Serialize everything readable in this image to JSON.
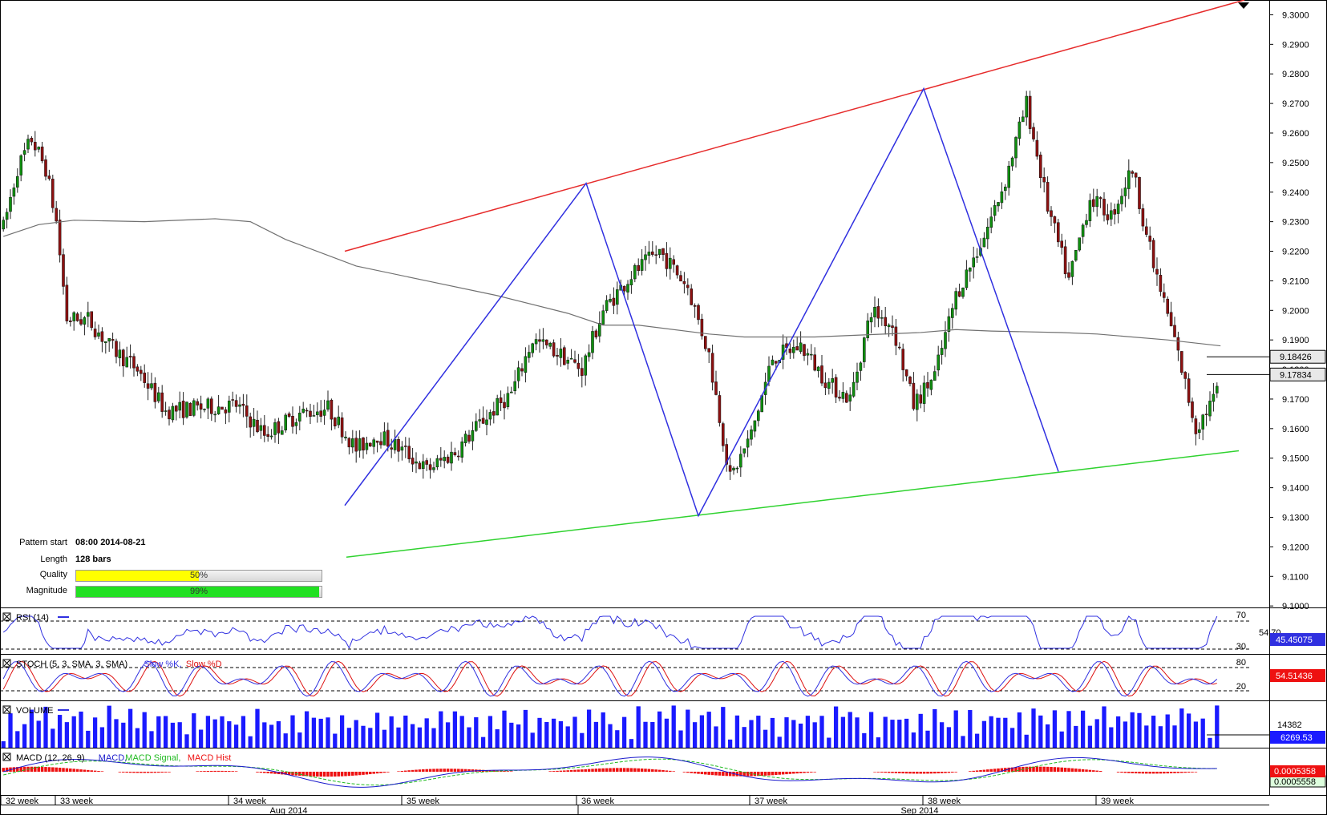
{
  "pattern_info": {
    "start_label": "Pattern start",
    "start_value": "08:00 2014-08-21",
    "length_label": "Length",
    "length_value": "128 bars",
    "quality_label": "Quality",
    "quality_value": "50%",
    "quality_fraction": 0.5,
    "magnitude_label": "Magnitude",
    "magnitude_value": "99%",
    "magnitude_fraction": 0.99
  },
  "colors": {
    "bull": "#0f8f0f",
    "bear": "#8e1010",
    "resistance": "#e62b2b",
    "support": "#2fd22f",
    "zigzag": "#3030e0",
    "ma": "#707070",
    "quality_bar": "#ffff00",
    "magnitude_bar": "#22e022",
    "volume": "#1a1aff",
    "macd": "#1a1acc",
    "macd_signal": "#22bb22",
    "macd_hist": "#ee1111"
  },
  "chart_data": {
    "type": "candlestick",
    "price_axis": {
      "ticks": [
        "9.3000",
        "9.2900",
        "9.2800",
        "9.2700",
        "9.2600",
        "9.2500",
        "9.2400",
        "9.2300",
        "9.2200",
        "9.2100",
        "9.2000",
        "9.1900",
        "9.1800",
        "9.1700",
        "9.1600",
        "9.1500",
        "9.1400",
        "9.1300",
        "9.1200",
        "9.1100",
        "9.1000"
      ],
      "range": [
        9.0995,
        9.305
      ]
    },
    "current_price_label": "9.17834",
    "upper_price_label": "9.18426",
    "time_axis": {
      "weeks": [
        "32 week",
        "33 week",
        "34 week",
        "35 week",
        "36 week",
        "37 week",
        "38 week",
        "39 week"
      ],
      "months": [
        "Aug 2014",
        "Sep 2014"
      ]
    },
    "ma_curve": [
      [
        0,
        9.225
      ],
      [
        10,
        9.229
      ],
      [
        20,
        9.2305
      ],
      [
        40,
        9.23
      ],
      [
        60,
        9.231
      ],
      [
        70,
        9.23
      ],
      [
        80,
        9.224
      ],
      [
        100,
        9.215
      ],
      [
        120,
        9.21
      ],
      [
        140,
        9.205
      ],
      [
        160,
        9.199
      ],
      [
        170,
        9.195
      ],
      [
        180,
        9.195
      ],
      [
        200,
        9.192
      ],
      [
        210,
        9.191
      ],
      [
        230,
        9.191
      ],
      [
        240,
        9.1915
      ],
      [
        260,
        9.1925
      ],
      [
        270,
        9.1935
      ],
      [
        280,
        9.193
      ],
      [
        300,
        9.1925
      ],
      [
        310,
        9.192
      ],
      [
        330,
        9.19
      ],
      [
        345,
        9.188
      ]
    ],
    "resistance_line": [
      [
        9.22,
        9.305
      ]
    ],
    "support_line": [
      [
        9.1165,
        9.1525
      ]
    ],
    "zigzag": [
      [
        9.134
      ],
      [
        9.243
      ],
      [
        9.1305
      ],
      [
        9.275
      ],
      [
        9.1455
      ]
    ],
    "rsi": {
      "label": "RSI (14)",
      "levels": [
        "70",
        "30"
      ],
      "value_label": "45.45075",
      "hidden_label": "54.70"
    },
    "stoch": {
      "label": "STOCH (5, 3, SMA, 3, SMA)",
      "k_label": "Slow %K",
      "d_label": "Slow %D",
      "levels": [
        "80",
        "20"
      ],
      "value_label": "54.51436"
    },
    "volume": {
      "label": "VOLUME",
      "max_label": "14382",
      "value_label": "6269.53"
    },
    "macd": {
      "label": "MACD (12, 26, 9)",
      "line_label": "MACD",
      "signal_label": "MACD Signal",
      "hist_label": "MACD Hist",
      "value_label": "0.0005358",
      "value2_label": "0.0005558"
    }
  }
}
